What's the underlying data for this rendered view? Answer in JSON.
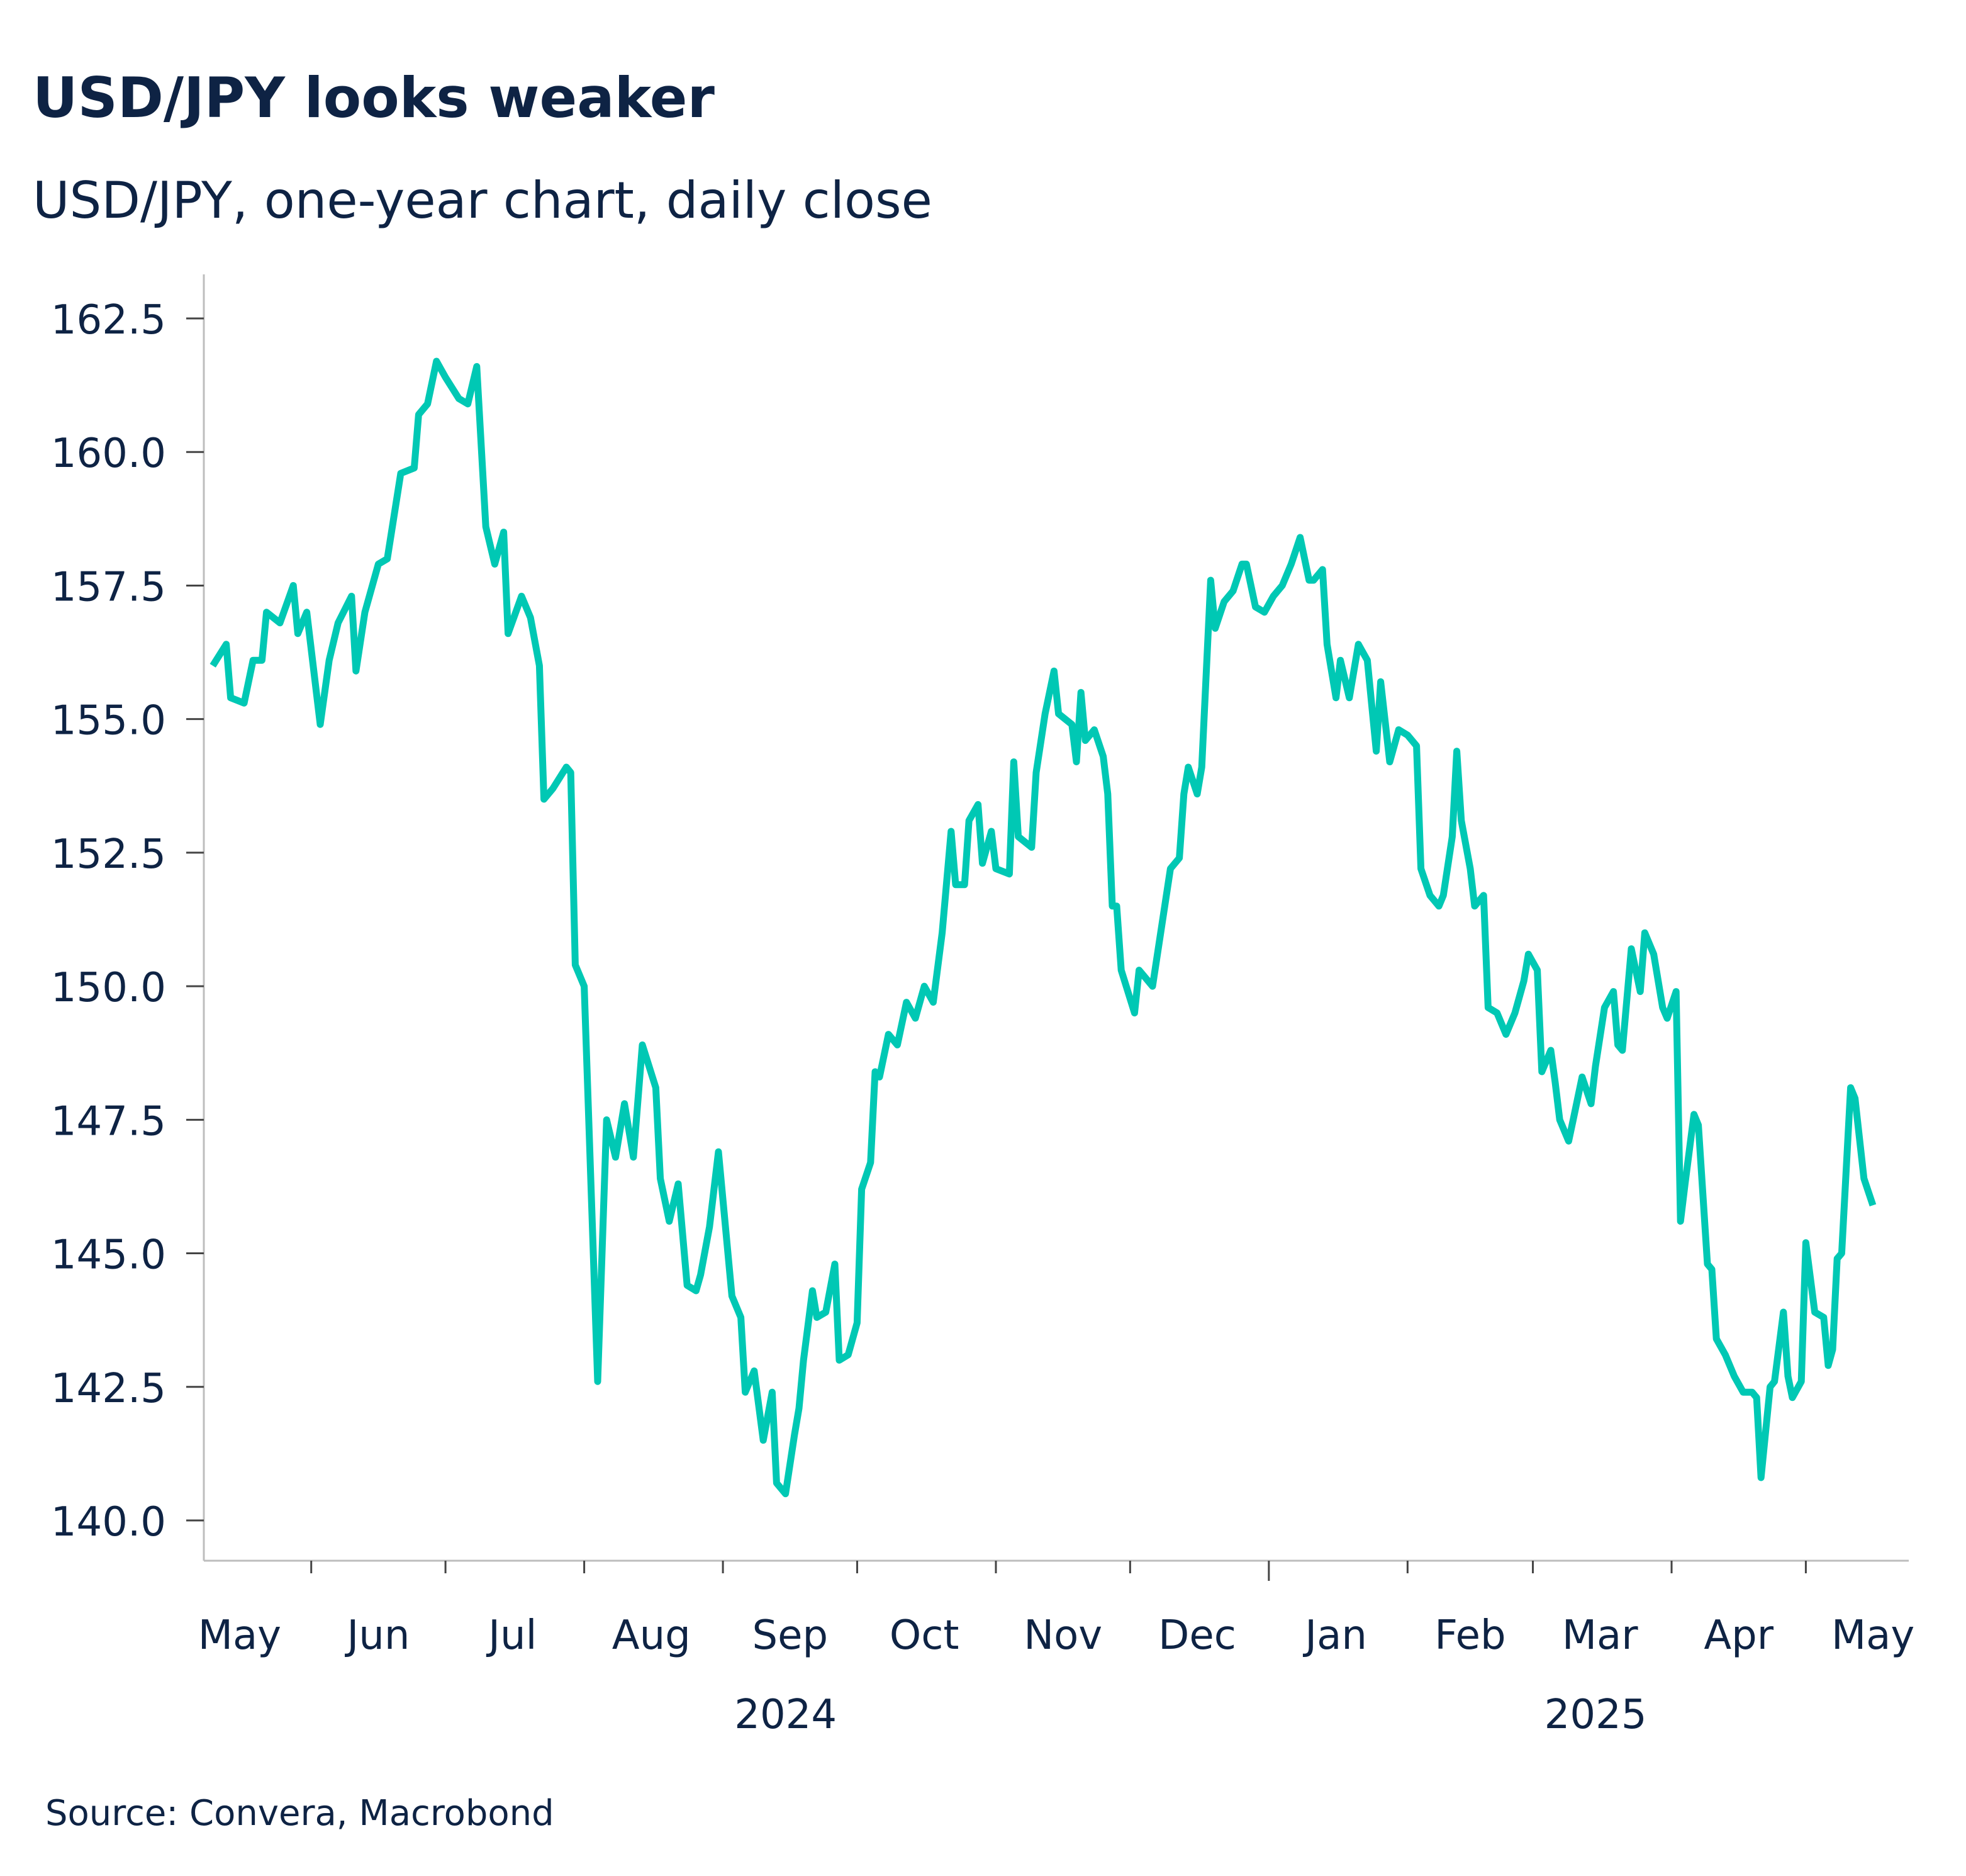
{
  "title": "USD/JPY looks weaker",
  "subtitle": "USD/JPY, one-year chart, daily close",
  "source": "Source: Convera, Macrobond",
  "colors": {
    "line": "#00c8b4",
    "text": "#0e2344",
    "axis": "#bdbdbd"
  },
  "chart_data": {
    "type": "line",
    "title": "USD/JPY looks weaker",
    "subtitle": "USD/JPY, one-year chart, daily close",
    "xlabel": "",
    "ylabel": "",
    "xlim": [
      "2024-05-08",
      "2025-05-24"
    ],
    "ylim": [
      139.25,
      164.25
    ],
    "yticks": [
      "140.0",
      "142.5",
      "145.0",
      "147.5",
      "150.0",
      "152.5",
      "155.0",
      "157.5",
      "160.0",
      "162.5"
    ],
    "month_ticks": [
      "2024-06-01",
      "2024-07-01",
      "2024-08-01",
      "2024-09-01",
      "2024-10-01",
      "2024-11-01",
      "2024-12-01",
      "2025-01-01",
      "2025-02-01",
      "2025-03-01",
      "2025-04-01",
      "2025-05-01"
    ],
    "month_labels": [
      {
        "label": "May",
        "date": "2024-05-16"
      },
      {
        "label": "Jun",
        "date": "2024-06-16"
      },
      {
        "label": "Jul",
        "date": "2024-07-16"
      },
      {
        "label": "Aug",
        "date": "2024-08-16"
      },
      {
        "label": "Sep",
        "date": "2024-09-16"
      },
      {
        "label": "Oct",
        "date": "2024-10-16"
      },
      {
        "label": "Nov",
        "date": "2024-11-16"
      },
      {
        "label": "Dec",
        "date": "2024-12-16"
      },
      {
        "label": "Jan",
        "date": "2025-01-16"
      },
      {
        "label": "Feb",
        "date": "2025-02-15"
      },
      {
        "label": "Mar",
        "date": "2025-03-16"
      },
      {
        "label": "Apr",
        "date": "2025-04-16"
      },
      {
        "label": "May",
        "date": "2025-05-16"
      }
    ],
    "year_labels": [
      {
        "label": "2024",
        "date": "2024-09-15"
      },
      {
        "label": "2025",
        "date": "2025-03-15"
      }
    ],
    "grid": false,
    "legend": "none",
    "series": [
      {
        "points": [
          [
            "2024-05-10",
            156.0
          ],
          [
            "2024-05-13",
            156.4
          ],
          [
            "2024-05-14",
            155.4
          ],
          [
            "2024-05-17",
            155.3
          ],
          [
            "2024-05-19",
            156.1
          ],
          [
            "2024-05-21",
            156.1
          ],
          [
            "2024-05-22",
            157.0
          ],
          [
            "2024-05-25",
            156.8
          ],
          [
            "2024-05-28",
            157.5
          ],
          [
            "2024-05-29",
            156.6
          ],
          [
            "2024-05-31",
            157.0
          ],
          [
            "2024-06-03",
            154.9
          ],
          [
            "2024-06-05",
            156.1
          ],
          [
            "2024-06-07",
            156.8
          ],
          [
            "2024-06-10",
            157.3
          ],
          [
            "2024-06-11",
            155.9
          ],
          [
            "2024-06-13",
            157.0
          ],
          [
            "2024-06-16",
            157.9
          ],
          [
            "2024-06-18",
            158.0
          ],
          [
            "2024-06-21",
            159.6
          ],
          [
            "2024-06-24",
            159.7
          ],
          [
            "2024-06-25",
            160.7
          ],
          [
            "2024-06-27",
            160.9
          ],
          [
            "2024-06-29",
            161.7
          ],
          [
            "2024-07-01",
            161.4
          ],
          [
            "2024-07-04",
            161.0
          ],
          [
            "2024-07-06",
            160.9
          ],
          [
            "2024-07-08",
            161.6
          ],
          [
            "2024-07-10",
            158.6
          ],
          [
            "2024-07-12",
            157.9
          ],
          [
            "2024-07-14",
            158.5
          ],
          [
            "2024-07-15",
            156.6
          ],
          [
            "2024-07-18",
            157.3
          ],
          [
            "2024-07-20",
            156.9
          ],
          [
            "2024-07-22",
            156.0
          ],
          [
            "2024-07-23",
            153.5
          ],
          [
            "2024-07-25",
            153.7
          ],
          [
            "2024-07-28",
            154.1
          ],
          [
            "2024-07-29",
            154.0
          ],
          [
            "2024-07-30",
            150.4
          ],
          [
            "2024-08-01",
            150.0
          ],
          [
            "2024-08-04",
            142.6
          ],
          [
            "2024-08-06",
            147.5
          ],
          [
            "2024-08-08",
            146.8
          ],
          [
            "2024-08-10",
            147.8
          ],
          [
            "2024-08-12",
            146.8
          ],
          [
            "2024-08-14",
            148.9
          ],
          [
            "2024-08-17",
            148.1
          ],
          [
            "2024-08-18",
            146.4
          ],
          [
            "2024-08-20",
            145.6
          ],
          [
            "2024-08-22",
            146.3
          ],
          [
            "2024-08-24",
            144.4
          ],
          [
            "2024-08-26",
            144.3
          ],
          [
            "2024-08-27",
            144.6
          ],
          [
            "2024-08-29",
            145.5
          ],
          [
            "2024-08-31",
            146.9
          ],
          [
            "2024-09-03",
            144.2
          ],
          [
            "2024-09-05",
            143.8
          ],
          [
            "2024-09-06",
            142.4
          ],
          [
            "2024-09-08",
            142.8
          ],
          [
            "2024-09-10",
            141.5
          ],
          [
            "2024-09-12",
            142.4
          ],
          [
            "2024-09-13",
            140.7
          ],
          [
            "2024-09-15",
            140.5
          ],
          [
            "2024-09-17",
            141.6
          ],
          [
            "2024-09-18",
            142.1
          ],
          [
            "2024-09-19",
            143.0
          ],
          [
            "2024-09-21",
            144.3
          ],
          [
            "2024-09-22",
            143.8
          ],
          [
            "2024-09-24",
            143.9
          ],
          [
            "2024-09-26",
            144.8
          ],
          [
            "2024-09-27",
            143.0
          ],
          [
            "2024-09-29",
            143.1
          ],
          [
            "2024-10-01",
            143.7
          ],
          [
            "2024-10-02",
            146.2
          ],
          [
            "2024-10-04",
            146.7
          ],
          [
            "2024-10-05",
            148.4
          ],
          [
            "2024-10-06",
            148.3
          ],
          [
            "2024-10-08",
            149.1
          ],
          [
            "2024-10-10",
            148.9
          ],
          [
            "2024-10-12",
            149.7
          ],
          [
            "2024-10-14",
            149.4
          ],
          [
            "2024-10-16",
            150.0
          ],
          [
            "2024-10-18",
            149.7
          ],
          [
            "2024-10-20",
            151.0
          ],
          [
            "2024-10-22",
            152.9
          ],
          [
            "2024-10-23",
            151.9
          ],
          [
            "2024-10-25",
            151.9
          ],
          [
            "2024-10-26",
            153.1
          ],
          [
            "2024-10-28",
            153.4
          ],
          [
            "2024-10-29",
            152.3
          ],
          [
            "2024-10-31",
            152.9
          ],
          [
            "2024-11-01",
            152.2
          ],
          [
            "2024-11-04",
            152.1
          ],
          [
            "2024-11-05",
            154.2
          ],
          [
            "2024-11-06",
            152.8
          ],
          [
            "2024-11-09",
            152.6
          ],
          [
            "2024-11-10",
            154.0
          ],
          [
            "2024-11-12",
            155.1
          ],
          [
            "2024-11-14",
            155.9
          ],
          [
            "2024-11-15",
            155.1
          ],
          [
            "2024-11-18",
            154.9
          ],
          [
            "2024-11-19",
            154.2
          ],
          [
            "2024-11-20",
            155.5
          ],
          [
            "2024-11-21",
            154.6
          ],
          [
            "2024-11-23",
            154.8
          ],
          [
            "2024-11-25",
            154.3
          ],
          [
            "2024-11-26",
            153.6
          ],
          [
            "2024-11-27",
            151.5
          ],
          [
            "2024-11-28",
            151.5
          ],
          [
            "2024-11-29",
            150.3
          ],
          [
            "2024-12-02",
            149.5
          ],
          [
            "2024-12-03",
            150.3
          ],
          [
            "2024-12-06",
            150.0
          ],
          [
            "2024-12-08",
            151.1
          ],
          [
            "2024-12-10",
            152.2
          ],
          [
            "2024-12-12",
            152.4
          ],
          [
            "2024-12-13",
            153.6
          ],
          [
            "2024-12-14",
            154.1
          ],
          [
            "2024-12-16",
            153.6
          ],
          [
            "2024-12-17",
            154.1
          ],
          [
            "2024-12-19",
            157.6
          ],
          [
            "2024-12-20",
            156.7
          ],
          [
            "2024-12-22",
            157.2
          ],
          [
            "2024-12-24",
            157.4
          ],
          [
            "2024-12-26",
            157.9
          ],
          [
            "2024-12-27",
            157.9
          ],
          [
            "2024-12-29",
            157.1
          ],
          [
            "2024-12-31",
            157.0
          ],
          [
            "2025-01-02",
            157.3
          ],
          [
            "2025-01-04",
            157.5
          ],
          [
            "2025-01-06",
            157.9
          ],
          [
            "2025-01-08",
            158.4
          ],
          [
            "2025-01-10",
            157.6
          ],
          [
            "2025-01-11",
            157.6
          ],
          [
            "2025-01-13",
            157.8
          ],
          [
            "2025-01-14",
            156.4
          ],
          [
            "2025-01-16",
            155.4
          ],
          [
            "2025-01-17",
            156.1
          ],
          [
            "2025-01-19",
            155.4
          ],
          [
            "2025-01-21",
            156.4
          ],
          [
            "2025-01-23",
            156.1
          ],
          [
            "2025-01-25",
            154.4
          ],
          [
            "2025-01-26",
            155.7
          ],
          [
            "2025-01-28",
            154.2
          ],
          [
            "2025-01-30",
            154.8
          ],
          [
            "2025-02-01",
            154.7
          ],
          [
            "2025-02-03",
            154.5
          ],
          [
            "2025-02-04",
            152.2
          ],
          [
            "2025-02-06",
            151.7
          ],
          [
            "2025-02-08",
            151.5
          ],
          [
            "2025-02-09",
            151.7
          ],
          [
            "2025-02-11",
            152.8
          ],
          [
            "2025-02-12",
            154.4
          ],
          [
            "2025-02-13",
            153.1
          ],
          [
            "2025-02-15",
            152.2
          ],
          [
            "2025-02-16",
            151.5
          ],
          [
            "2025-02-18",
            151.7
          ],
          [
            "2025-02-19",
            149.6
          ],
          [
            "2025-02-21",
            149.5
          ],
          [
            "2025-02-23",
            149.1
          ],
          [
            "2025-02-25",
            149.5
          ],
          [
            "2025-02-27",
            150.1
          ],
          [
            "2025-02-28",
            150.6
          ],
          [
            "2025-03-02",
            150.3
          ],
          [
            "2025-03-03",
            148.4
          ],
          [
            "2025-03-05",
            148.8
          ],
          [
            "2025-03-06",
            148.2
          ],
          [
            "2025-03-07",
            147.5
          ],
          [
            "2025-03-09",
            147.1
          ],
          [
            "2025-03-10",
            147.5
          ],
          [
            "2025-03-12",
            148.3
          ],
          [
            "2025-03-14",
            147.8
          ],
          [
            "2025-03-15",
            148.5
          ],
          [
            "2025-03-17",
            149.6
          ],
          [
            "2025-03-19",
            149.9
          ],
          [
            "2025-03-20",
            148.9
          ],
          [
            "2025-03-21",
            148.8
          ],
          [
            "2025-03-23",
            150.7
          ],
          [
            "2025-03-25",
            149.9
          ],
          [
            "2025-03-26",
            151.0
          ],
          [
            "2025-03-28",
            150.6
          ],
          [
            "2025-03-30",
            149.6
          ],
          [
            "2025-03-31",
            149.4
          ],
          [
            "2025-04-02",
            149.9
          ],
          [
            "2025-04-03",
            145.6
          ],
          [
            "2025-04-04",
            146.3
          ],
          [
            "2025-04-06",
            147.6
          ],
          [
            "2025-04-07",
            147.4
          ],
          [
            "2025-04-09",
            144.8
          ],
          [
            "2025-04-10",
            144.7
          ],
          [
            "2025-04-11",
            143.4
          ],
          [
            "2025-04-13",
            143.1
          ],
          [
            "2025-04-15",
            142.7
          ],
          [
            "2025-04-17",
            142.4
          ],
          [
            "2025-04-19",
            142.4
          ],
          [
            "2025-04-20",
            142.3
          ],
          [
            "2025-04-21",
            140.8
          ],
          [
            "2025-04-23",
            142.5
          ],
          [
            "2025-04-24",
            142.6
          ],
          [
            "2025-04-26",
            143.9
          ],
          [
            "2025-04-27",
            142.7
          ],
          [
            "2025-04-28",
            142.3
          ],
          [
            "2025-04-30",
            142.6
          ],
          [
            "2025-05-01",
            145.2
          ],
          [
            "2025-05-03",
            143.9
          ],
          [
            "2025-05-05",
            143.8
          ],
          [
            "2025-05-06",
            142.9
          ],
          [
            "2025-05-07",
            143.2
          ],
          [
            "2025-05-08",
            144.9
          ],
          [
            "2025-05-09",
            145.0
          ],
          [
            "2025-05-11",
            148.1
          ],
          [
            "2025-05-12",
            147.9
          ],
          [
            "2025-05-14",
            146.4
          ],
          [
            "2025-05-16",
            145.9
          ]
        ]
      }
    ]
  }
}
